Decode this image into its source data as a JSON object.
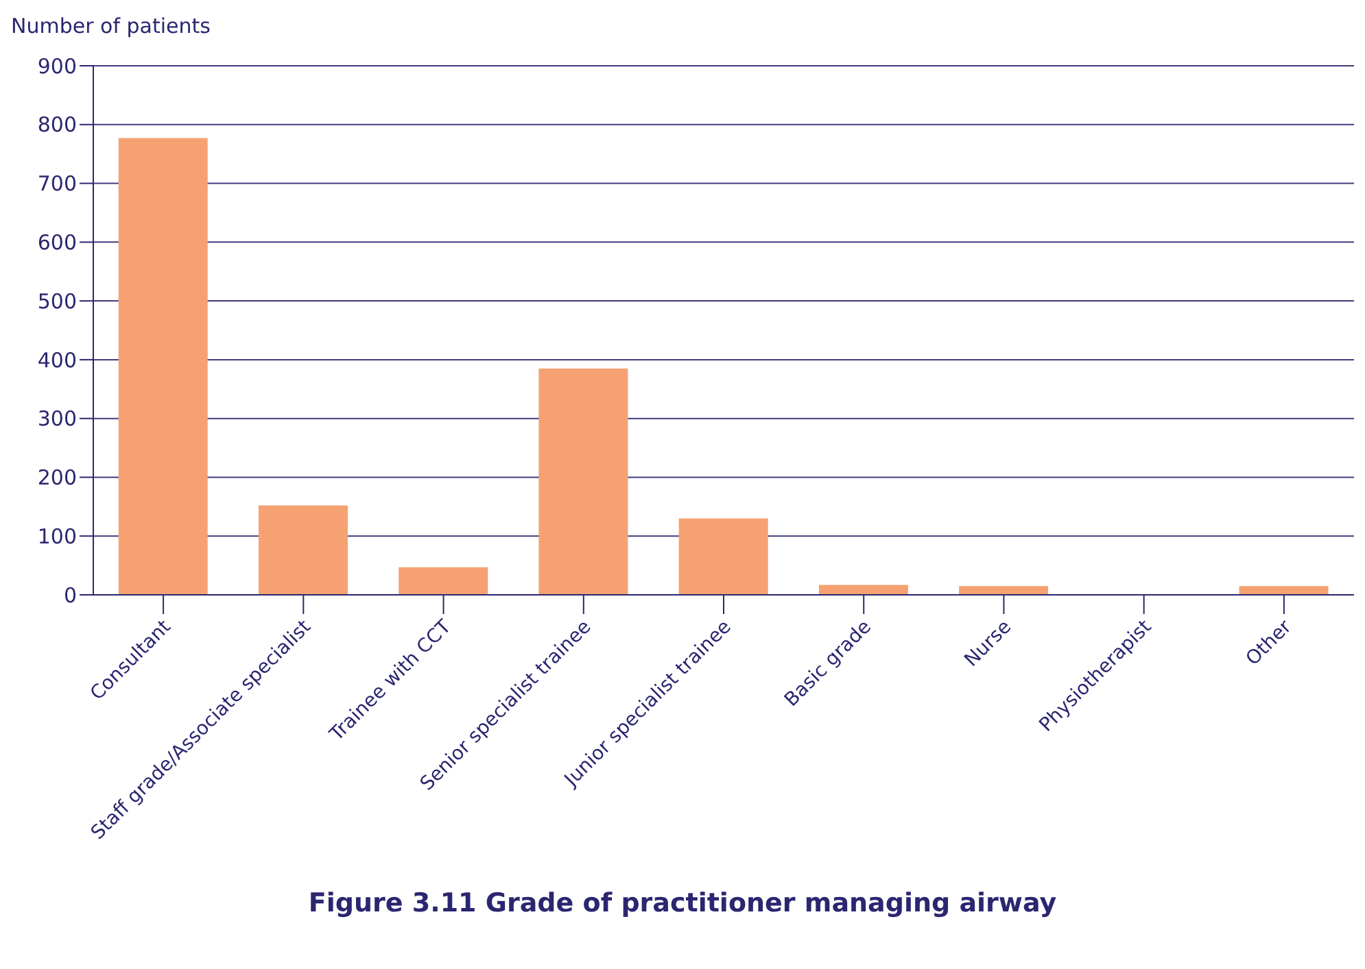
{
  "chart_data": {
    "type": "bar",
    "title": "Figure 3.11 Grade of practitioner managing airway",
    "ylabel": "Number of patients",
    "categories": [
      "Consultant",
      "Staff grade/Associate specialist",
      "Trainee with CCT",
      "Senior specialist trainee",
      "Junior specialist trainee",
      "Basic grade",
      "Nurse",
      "Physiotherapist",
      "Other"
    ],
    "values": [
      777,
      152,
      47,
      385,
      130,
      17,
      15,
      0,
      15
    ],
    "color": "#f6a172",
    "ylim": [
      0,
      900
    ],
    "yticks": [
      0,
      100,
      200,
      300,
      400,
      500,
      600,
      700,
      800,
      900
    ],
    "grid": "y"
  }
}
